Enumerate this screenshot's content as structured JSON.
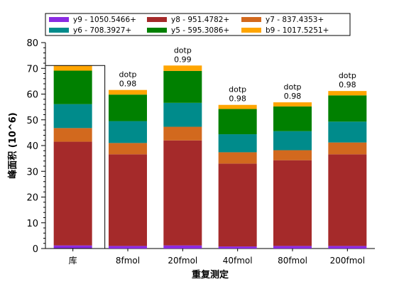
{
  "chart_data": {
    "type": "bar",
    "stacked": true,
    "title": "",
    "xlabel": "重复测定",
    "ylabel": "峰面积 (10^6)",
    "ylim": [
      0,
      80
    ],
    "yticks": [
      0,
      10,
      20,
      30,
      40,
      50,
      60,
      70,
      80
    ],
    "grid": false,
    "legend_position": "top",
    "categories": [
      "库",
      "8fmol",
      "20fmol",
      "40fmol",
      "80fmol",
      "200fmol"
    ],
    "series": [
      {
        "name": "y9 - 1050.5466+",
        "color": "#8a2be2",
        "values": [
          1.2,
          1.0,
          1.2,
          0.8,
          1.0,
          1.0
        ]
      },
      {
        "name": "y8 - 951.4782+",
        "color": "#a52a2a",
        "values": [
          40.3,
          35.6,
          40.8,
          32.2,
          33.3,
          35.6
        ]
      },
      {
        "name": "y7 - 837.4353+",
        "color": "#d2691e",
        "values": [
          5.3,
          4.4,
          5.3,
          4.4,
          3.9,
          4.6
        ]
      },
      {
        "name": "y6 - 708.3927+",
        "color": "#008b8b",
        "values": [
          9.3,
          8.5,
          9.3,
          7.0,
          7.4,
          8.1
        ]
      },
      {
        "name": "y5 - 595.3086+",
        "color": "#008000",
        "values": [
          13.0,
          10.3,
          12.4,
          9.8,
          9.6,
          10.2
        ]
      },
      {
        "name": "b9 - 1017.5251+",
        "color": "#ffa500",
        "values": [
          2.0,
          1.8,
          2.1,
          1.6,
          1.6,
          1.7
        ]
      }
    ],
    "annotations": [
      {
        "category": "8fmol",
        "label": "dotp",
        "value": "0.98"
      },
      {
        "category": "20fmol",
        "label": "dotp",
        "value": "0.99"
      },
      {
        "category": "40fmol",
        "label": "dotp",
        "value": "0.98"
      },
      {
        "category": "80fmol",
        "label": "dotp",
        "value": "0.98"
      },
      {
        "category": "200fmol",
        "label": "dotp",
        "value": "0.98"
      }
    ],
    "highlighted_category": "库"
  }
}
